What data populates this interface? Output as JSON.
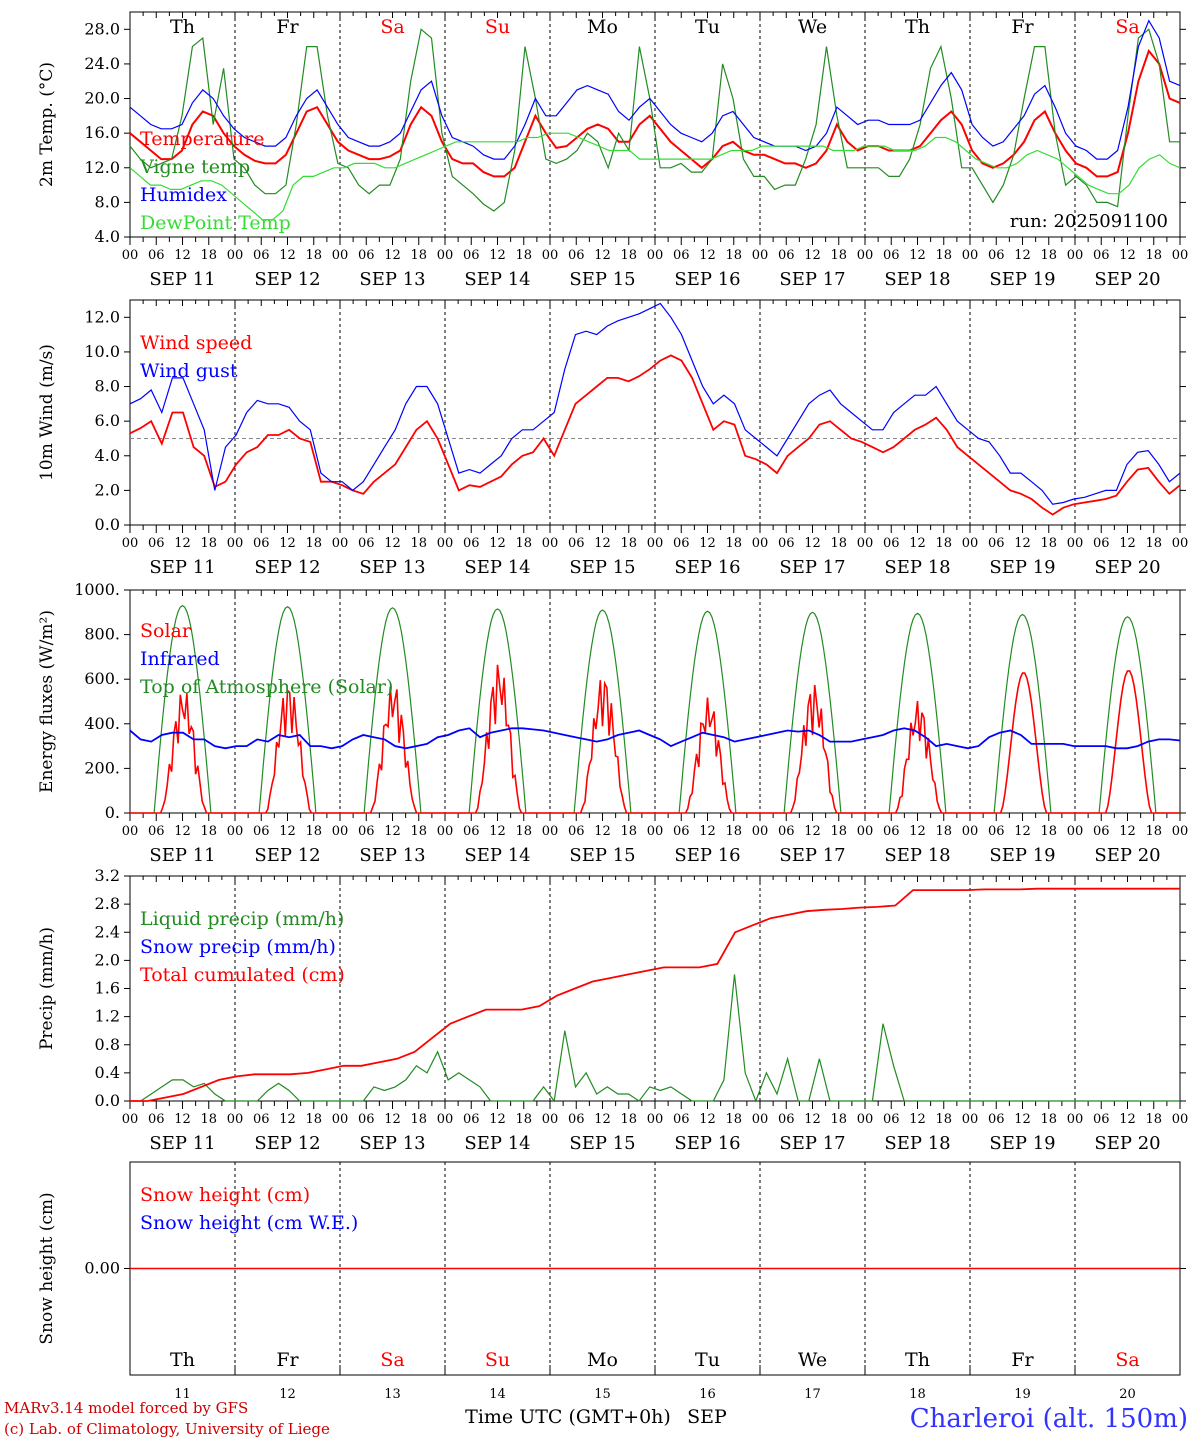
{
  "days": {
    "weekdays": [
      "Th",
      "Fr",
      "Sa",
      "Su",
      "Mo",
      "Tu",
      "We",
      "Th",
      "Fr",
      "Sa"
    ],
    "weekday_colors": [
      "#000000",
      "#000000",
      "#ff0000",
      "#ff0000",
      "#000000",
      "#000000",
      "#000000",
      "#000000",
      "#000000",
      "#ff0000"
    ],
    "date_labels": [
      "SEP 11",
      "SEP 12",
      "SEP 13",
      "SEP 14",
      "SEP 15",
      "SEP 16",
      "SEP 17",
      "SEP 18",
      "SEP 19",
      "SEP 20"
    ],
    "day_numbers": [
      "11",
      "12",
      "13",
      "14",
      "15",
      "16",
      "17",
      "18",
      "19",
      "20"
    ],
    "hour_labels": [
      "00",
      "06",
      "12",
      "18"
    ],
    "final_hour_label": "00"
  },
  "chart_data": [
    {
      "type": "line",
      "ylabel": "2m Temp. (°C)",
      "ylim": [
        4,
        30
      ],
      "yticks": [
        "4.0",
        "8.0",
        "12.0",
        "16.0",
        "20.0",
        "24.0",
        "28.0"
      ],
      "ytick_values": [
        4,
        8,
        12,
        16,
        20,
        24,
        28
      ],
      "annotation": "run: 2025091100",
      "legend_placement": "top-left",
      "series": [
        {
          "name": "Temperature",
          "color": "#ff0000",
          "values": [
            16,
            15,
            14,
            13,
            13,
            14,
            17,
            18.5,
            18,
            16,
            14.5,
            13.5,
            12.8,
            12.5,
            12.5,
            13.5,
            16,
            18.5,
            19,
            17,
            15,
            14,
            13.5,
            13,
            13,
            13.3,
            14,
            17,
            19,
            18,
            15,
            13,
            12.5,
            12.5,
            11.5,
            11,
            11,
            12,
            15,
            18,
            16,
            14.3,
            14.5,
            15.5,
            16.5,
            17,
            16.5,
            15,
            15,
            17,
            18,
            16.5,
            15,
            14,
            13,
            12,
            13,
            14.5,
            15,
            14,
            13.5,
            13.5,
            13,
            12.5,
            12.5,
            12,
            12.5,
            14,
            17,
            15,
            14,
            14.5,
            14.5,
            14,
            14,
            14,
            14.5,
            16,
            17.5,
            18.5,
            17,
            14,
            12.5,
            12,
            12.5,
            13.5,
            15,
            17.5,
            18.5,
            16,
            14,
            12.5,
            12,
            11,
            11,
            11.5,
            16,
            22,
            25.5,
            24,
            20,
            19.5
          ]
        },
        {
          "name": "Vigne temp",
          "color": "#228b22",
          "values": [
            14.5,
            13,
            12,
            12.5,
            13,
            18,
            26,
            27,
            17,
            23.5,
            13,
            12,
            10,
            9,
            9,
            10,
            17,
            26,
            26,
            18,
            12.5,
            12,
            10,
            9,
            10,
            10,
            13,
            22,
            28,
            27,
            16,
            11,
            10,
            9,
            7.8,
            7,
            8,
            14,
            26,
            20,
            13,
            12.5,
            13,
            14,
            16,
            15,
            12,
            16,
            14,
            26,
            20,
            12,
            12,
            12.5,
            11.5,
            11.5,
            13,
            24,
            20,
            13,
            11,
            11,
            9.5,
            10,
            10,
            13,
            17,
            26,
            18,
            12,
            12,
            12,
            12,
            11,
            11,
            13,
            17,
            23.5,
            26,
            20,
            12,
            12,
            10,
            8,
            10,
            13.5,
            20,
            26,
            26,
            16,
            10,
            11,
            10,
            8,
            8,
            7.5,
            18,
            27,
            28,
            24,
            15,
            15
          ]
        },
        {
          "name": "Humidex",
          "color": "#0000ff",
          "values": [
            19,
            18,
            17,
            16.5,
            16.5,
            17,
            19.5,
            21,
            20,
            18,
            16.5,
            15.5,
            15,
            14.5,
            14.5,
            15.5,
            18,
            20,
            21,
            19,
            17,
            15.5,
            15,
            14.5,
            14.5,
            15,
            16,
            18.5,
            21,
            22,
            18,
            15.5,
            15,
            14.5,
            13.5,
            13,
            13,
            14.5,
            17,
            20,
            18,
            18,
            19.5,
            21,
            21.5,
            21,
            20.5,
            18.5,
            17.5,
            19,
            20,
            18.5,
            17,
            16,
            15.5,
            15,
            16,
            18,
            18.5,
            17,
            15.5,
            15,
            14.5,
            14.5,
            14.5,
            14,
            14.5,
            16,
            19,
            18,
            17,
            17.5,
            17.5,
            17,
            17,
            17,
            17.5,
            19.5,
            21.5,
            23,
            21,
            17,
            15.5,
            14.5,
            15,
            16.5,
            18,
            20.5,
            21.5,
            19,
            16,
            14.5,
            14,
            13,
            13,
            14,
            19,
            26,
            29,
            27,
            22,
            21.5
          ]
        },
        {
          "name": "DewPoint Temp",
          "color": "#33dd33",
          "values": [
            12,
            11,
            10,
            10,
            9.5,
            9.5,
            10,
            10.5,
            10.5,
            10,
            9,
            8,
            7,
            6,
            6,
            7,
            10,
            11,
            11,
            11.5,
            12,
            12,
            12.5,
            12.5,
            12.5,
            12,
            12,
            12.5,
            13,
            13.5,
            14,
            14.5,
            15,
            15,
            15,
            15,
            15,
            15,
            15,
            15.5,
            15.5,
            16,
            16,
            16,
            15.5,
            15,
            14.5,
            14,
            14,
            14,
            13,
            13,
            13,
            13,
            13,
            13,
            13,
            13,
            13.5,
            14,
            14,
            14,
            14.5,
            14.5,
            14.5,
            14.5,
            14.5,
            14.5,
            14.5,
            14,
            14,
            14,
            14.5,
            14.5,
            14.5,
            14,
            14,
            14,
            14.5,
            15.5,
            15.5,
            15,
            14,
            13,
            12.5,
            12,
            12,
            12.5,
            13.5,
            14,
            13.5,
            13,
            12,
            11,
            10,
            9.5,
            9,
            9,
            10,
            12,
            13,
            13.5,
            12.5,
            12
          ]
        }
      ]
    },
    {
      "type": "line",
      "ylabel": "10m Wind (m/s)",
      "ylim": [
        0,
        13
      ],
      "yticks": [
        "0.0",
        "2.0",
        "4.0",
        "6.0",
        "8.0",
        "10.0",
        "12.0"
      ],
      "ytick_values": [
        0,
        2,
        4,
        6,
        8,
        10,
        12
      ],
      "reference_line": 5,
      "legend_placement": "top-left",
      "series": [
        {
          "name": "Wind speed",
          "color": "#ff0000",
          "values": [
            5.3,
            5.6,
            6,
            4.7,
            6.5,
            6.5,
            4.5,
            4,
            2.2,
            2.5,
            3.5,
            4.2,
            4.5,
            5.2,
            5.2,
            5.5,
            5,
            4.8,
            2.5,
            2.5,
            2.3,
            2,
            1.8,
            2.5,
            3,
            3.5,
            4.5,
            5.5,
            6,
            5,
            3.5,
            2,
            2.3,
            2.2,
            2.5,
            2.8,
            3.5,
            4,
            4.2,
            5,
            4,
            5.5,
            7,
            7.5,
            8,
            8.5,
            8.5,
            8.3,
            8.6,
            9,
            9.5,
            9.8,
            9.5,
            8.5,
            7,
            5.5,
            6,
            5.8,
            4,
            3.8,
            3.5,
            3,
            4,
            4.5,
            5,
            5.8,
            6,
            5.5,
            5,
            4.8,
            4.5,
            4.2,
            4.5,
            5,
            5.5,
            5.8,
            6.2,
            5.5,
            4.5,
            4,
            3.5,
            3,
            2.5,
            2,
            1.8,
            1.5,
            1,
            0.6,
            1,
            1.2,
            1.3,
            1.4,
            1.5,
            1.7,
            2.5,
            3.2,
            3.3,
            2.5,
            1.8,
            2.3
          ]
        },
        {
          "name": "Wind gust",
          "color": "#0000ff",
          "values": [
            7,
            7.3,
            7.8,
            6.5,
            8.5,
            8.5,
            7,
            5.5,
            2,
            4.5,
            5.2,
            6.5,
            7.2,
            7,
            7,
            6.8,
            6,
            5.5,
            3,
            2.5,
            2.5,
            2,
            2.5,
            3.5,
            4.5,
            5.5,
            7,
            8,
            8,
            7,
            5,
            3,
            3.2,
            3,
            3.5,
            4,
            5,
            5.5,
            5.5,
            6,
            6.5,
            9,
            11,
            11.2,
            11,
            11.5,
            11.8,
            12,
            12.2,
            12.5,
            12.8,
            12,
            11,
            9.5,
            8,
            7,
            7.5,
            7,
            5.5,
            5,
            4.5,
            4,
            5,
            6,
            7,
            7.5,
            7.8,
            7,
            6.5,
            6,
            5.5,
            5.5,
            6.5,
            7,
            7.5,
            7.5,
            8,
            7,
            6,
            5.5,
            5,
            4.8,
            4,
            3,
            3,
            2.5,
            2,
            1.2,
            1.3,
            1.5,
            1.6,
            1.8,
            2,
            2,
            3.5,
            4.2,
            4.3,
            3.5,
            2.5,
            3
          ]
        }
      ]
    },
    {
      "type": "line",
      "ylabel": "Energy fluxes (W/m²)",
      "ylim": [
        0,
        1000
      ],
      "yticks": [
        "0.",
        "200.",
        "400.",
        "600.",
        "800.",
        "1000."
      ],
      "ytick_values": [
        0,
        200,
        400,
        600,
        800,
        1000
      ],
      "legend_placement": "top-left",
      "series": [
        {
          "name": "Solar",
          "color": "#ff0000"
        },
        {
          "name": "Infrared",
          "color": "#0000ff"
        },
        {
          "name": "Top of Atmosphere (Solar)",
          "color": "#228b22"
        }
      ],
      "toa_peaks": [
        930,
        925,
        920,
        915,
        910,
        905,
        900,
        895,
        890,
        880
      ],
      "solar_peaks": [
        560,
        590,
        590,
        680,
        630,
        520,
        590,
        510,
        630,
        640
      ],
      "infrared_values": [
        370,
        330,
        320,
        350,
        360,
        360,
        330,
        330,
        300,
        290,
        300,
        300,
        330,
        320,
        350,
        340,
        350,
        300,
        300,
        290,
        300,
        330,
        350,
        340,
        330,
        300,
        290,
        300,
        310,
        340,
        350,
        370,
        380,
        340,
        360,
        370,
        380,
        380,
        375,
        370,
        360,
        350,
        340,
        330,
        320,
        330,
        350,
        360,
        370,
        350,
        330,
        300,
        320,
        340,
        360,
        350,
        340,
        320,
        330,
        340,
        350,
        360,
        370,
        365,
        370,
        350,
        320,
        320,
        320,
        330,
        340,
        350,
        370,
        380,
        370,
        340,
        300,
        310,
        300,
        290,
        300,
        340,
        360,
        370,
        350,
        310,
        310,
        310,
        310,
        300,
        300,
        300,
        300,
        290,
        290,
        300,
        320,
        330,
        330,
        325
      ]
    },
    {
      "type": "line",
      "ylabel": "Precip (mm/h)",
      "ylim": [
        0,
        3.2
      ],
      "yticks": [
        "0.0",
        "0.4",
        "0.8",
        "1.2",
        "1.6",
        "2.0",
        "2.4",
        "2.8",
        "3.2"
      ],
      "ytick_values": [
        0,
        0.4,
        0.8,
        1.2,
        1.6,
        2.0,
        2.4,
        2.8,
        3.2
      ],
      "legend_placement": "top-left",
      "series": [
        {
          "name": "Liquid precip (mm/h)",
          "color": "#228b22",
          "values": [
            0,
            0,
            0.1,
            0.2,
            0.3,
            0.3,
            0.2,
            0.25,
            0.1,
            0,
            0,
            0,
            0,
            0.15,
            0.25,
            0.15,
            0,
            0,
            0,
            0,
            0,
            0,
            0,
            0.2,
            0.15,
            0.2,
            0.3,
            0.5,
            0.4,
            0.7,
            0.3,
            0.4,
            0.3,
            0.2,
            0,
            0,
            0,
            0,
            0,
            0.2,
            0,
            1.0,
            0.2,
            0.4,
            0.1,
            0.2,
            0.1,
            0.1,
            0,
            0.2,
            0.15,
            0.2,
            0.1,
            0,
            0,
            0,
            0.3,
            1.8,
            0.4,
            0,
            0.4,
            0.1,
            0.6,
            0,
            0,
            0.6,
            0,
            0,
            0,
            0,
            0,
            1.1,
            0.5,
            0,
            0,
            0,
            0,
            0,
            0,
            0,
            0,
            0,
            0,
            0,
            0,
            0,
            0,
            0,
            0,
            0,
            0,
            0,
            0,
            0,
            0,
            0,
            0,
            0,
            0,
            0
          ]
        },
        {
          "name": "Snow precip (mm/h)",
          "color": "#0000ff",
          "values": []
        },
        {
          "name": "Total cumulated (cm)",
          "color": "#ff0000",
          "values": [
            0,
            0,
            0.05,
            0.1,
            0.2,
            0.3,
            0.35,
            0.38,
            0.38,
            0.38,
            0.4,
            0.45,
            0.5,
            0.5,
            0.55,
            0.6,
            0.7,
            0.9,
            1.1,
            1.2,
            1.3,
            1.3,
            1.3,
            1.35,
            1.5,
            1.6,
            1.7,
            1.75,
            1.8,
            1.85,
            1.9,
            1.9,
            1.9,
            1.95,
            2.4,
            2.5,
            2.6,
            2.65,
            2.7,
            2.72,
            2.73,
            2.75,
            2.76,
            2.78,
            3.0,
            3.0,
            3.0,
            3.0,
            3.01,
            3.01,
            3.01,
            3.02,
            3.02,
            3.02,
            3.02,
            3.02,
            3.02,
            3.02,
            3.02,
            3.02
          ]
        }
      ]
    },
    {
      "type": "line",
      "ylabel": "Snow height (cm)",
      "ytick_label": "0.00",
      "ytick_value": 0,
      "legend_placement": "top-left",
      "series": [
        {
          "name": "Snow height (cm)",
          "color": "#ff0000",
          "values": [
            0,
            0
          ]
        },
        {
          "name": "Snow height (cm W.E.)",
          "color": "#0000ff",
          "values": []
        }
      ]
    }
  ],
  "footer": {
    "credit_line1": "MARv3.14 model forced by GFS",
    "credit_line2": "(c) Lab. of Climatology, University of Liege",
    "xlabel": "Time UTC (GMT+0h)",
    "month": "SEP",
    "station": "Charleroi (alt. 150m)"
  },
  "colors": {
    "red": "#ff0000",
    "green": "#228b22",
    "blue": "#0000ff",
    "lightgreen": "#33dd33",
    "credit": "#cc0000",
    "station": "#3333ff"
  }
}
